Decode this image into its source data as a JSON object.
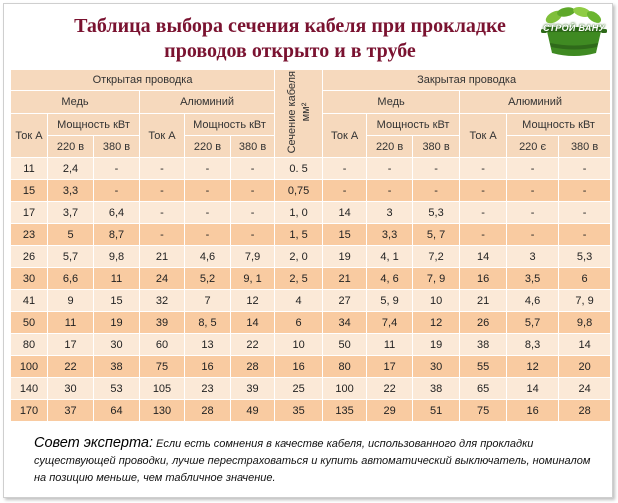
{
  "title": {
    "line1": "Таблица выбора сечения кабеля при прокладке",
    "line2": "проводов открыто и в трубе"
  },
  "logo": {
    "text": "СТРОЙ ВАНУ"
  },
  "table": {
    "open_wiring": "Открытая проводка",
    "closed_wiring": "Закрытая проводка",
    "copper": "Медь",
    "aluminium": "Алюминий",
    "current": "Ток А",
    "power": "Мощность кВт",
    "v220": "220 в",
    "v380": "380 в",
    "v220_closed_al": "220 є",
    "cross_section_line1": "Сечение кабеля",
    "cross_section_line2": "мм²",
    "rows": [
      [
        "11",
        "2,4",
        "-",
        "-",
        "-",
        "-",
        "0. 5",
        "-",
        "-",
        "-",
        "-",
        "-",
        "-"
      ],
      [
        "15",
        "3,3",
        "-",
        "-",
        "-",
        "-",
        "0,75",
        "-",
        "-",
        "-",
        "-",
        "-",
        "-"
      ],
      [
        "17",
        "3,7",
        "6,4",
        "-",
        "-",
        "-",
        "1, 0",
        "14",
        "3",
        "5,3",
        "-",
        "-",
        "-"
      ],
      [
        "23",
        "5",
        "8,7",
        "-",
        "-",
        "-",
        "1, 5",
        "15",
        "3,3",
        "5, 7",
        "-",
        "-",
        "-"
      ],
      [
        "26",
        "5,7",
        "9,8",
        "21",
        "4,6",
        "7,9",
        "2, 0",
        "19",
        "4, 1",
        "7,2",
        "14",
        "3",
        "5,3"
      ],
      [
        "30",
        "6,6",
        "11",
        "24",
        "5,2",
        "9, 1",
        "2, 5",
        "21",
        "4, 6",
        "7, 9",
        "16",
        "3,5",
        "6"
      ],
      [
        "41",
        "9",
        "15",
        "32",
        "7",
        "12",
        "4",
        "27",
        "5, 9",
        "10",
        "21",
        "4,6",
        "7, 9"
      ],
      [
        "50",
        "11",
        "19",
        "39",
        "8, 5",
        "14",
        "6",
        "34",
        "7,4",
        "12",
        "26",
        "5,7",
        "9,8"
      ],
      [
        "80",
        "17",
        "30",
        "60",
        "13",
        "22",
        "10",
        "50",
        "11",
        "19",
        "38",
        "8,3",
        "14"
      ],
      [
        "100",
        "22",
        "38",
        "75",
        "16",
        "28",
        "16",
        "80",
        "17",
        "30",
        "55",
        "12",
        "20"
      ],
      [
        "140",
        "30",
        "53",
        "105",
        "23",
        "39",
        "25",
        "100",
        "22",
        "38",
        "65",
        "14",
        "24"
      ],
      [
        "170",
        "37",
        "64",
        "130",
        "28",
        "49",
        "35",
        "135",
        "29",
        "51",
        "75",
        "16",
        "28"
      ]
    ]
  },
  "tip": {
    "label": "Совет эксперта:",
    "text": " Если есть сомнения в качестве кабеля, использованного для прокладки существующей проводки, лучше перестраховаться и купить автоматический выключатель, номиналом на позицию меньше, чем табличное значение."
  }
}
